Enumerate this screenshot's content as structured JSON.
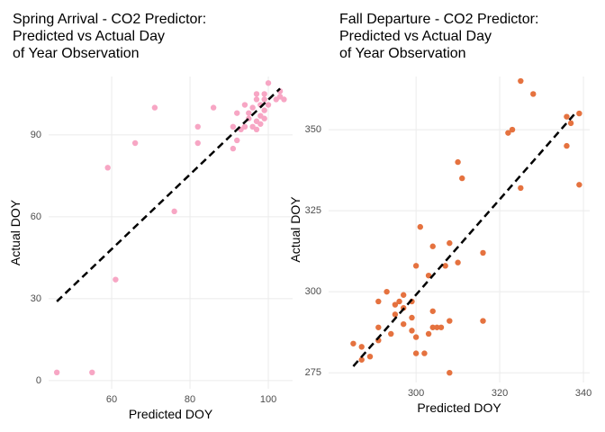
{
  "chart_data": [
    {
      "type": "scatter",
      "title": [
        "Spring Arrival - CO2 Predictor:",
        "Predicted vs Actual Day",
        "of Year Observation"
      ],
      "xlabel": "Predicted DOY",
      "ylabel": "Actual DOY",
      "color": "#f7a6c4",
      "grid": true,
      "xlim": [
        43.9,
        106.2
      ],
      "ylim": [
        -3,
        111.4
      ],
      "xticks": [
        60,
        80,
        100
      ],
      "yticks": [
        0,
        30,
        60,
        90
      ],
      "x": [
        46,
        55,
        59,
        61,
        66,
        71,
        76,
        82,
        82,
        86,
        91,
        91,
        92,
        92,
        93,
        94,
        94,
        95,
        95,
        96,
        96,
        97,
        97,
        97,
        97,
        98,
        98,
        98,
        99,
        99,
        99,
        99,
        100,
        100,
        102,
        103,
        103,
        104
      ],
      "y": [
        3,
        3,
        78,
        37,
        87,
        100,
        62,
        87,
        93,
        100,
        85,
        93,
        88,
        98,
        92,
        93,
        101,
        96,
        98,
        93,
        100,
        92,
        95,
        103,
        105,
        94,
        97,
        101,
        96,
        99,
        103,
        105,
        101,
        109,
        103,
        104,
        106,
        103
      ],
      "fit_line": {
        "x": [
          46,
          103
        ],
        "y": [
          29,
          107
        ]
      }
    },
    {
      "type": "scatter",
      "title": [
        "Fall Departure - CO2 Predictor:",
        "Predicted vs Actual Day",
        "of Year Observation"
      ],
      "xlabel": "Predicted DOY",
      "ylabel": "Actual DOY",
      "color": "#e5723f",
      "grid": true,
      "xlim": [
        279.1,
        341.5
      ],
      "ylim": [
        272,
        366.4
      ],
      "xticks": [
        300,
        320,
        340
      ],
      "yticks": [
        275,
        300,
        325,
        350
      ],
      "x": [
        285,
        287,
        287,
        289,
        291,
        291,
        291,
        293,
        294,
        295,
        295,
        296,
        297,
        297,
        297,
        299,
        299,
        299,
        300,
        300,
        300,
        301,
        302,
        303,
        303,
        304,
        304,
        304,
        305,
        306,
        307,
        308,
        308,
        308,
        310,
        310,
        311,
        316,
        316,
        322,
        323,
        325,
        325,
        328,
        336,
        336,
        337,
        339,
        339
      ],
      "y": [
        284,
        283,
        279,
        280,
        289,
        297,
        285,
        300,
        287,
        293,
        296,
        297,
        299,
        295,
        290,
        297,
        292,
        288,
        286,
        281,
        308,
        320,
        281,
        287,
        305,
        314,
        289,
        294,
        289,
        289,
        308,
        275,
        291,
        315,
        340,
        309,
        335,
        291,
        312,
        349,
        350,
        365,
        332,
        361,
        345,
        354,
        352,
        355,
        333
      ],
      "fit_line": {
        "x": [
          285,
          338
        ],
        "y": [
          277,
          355
        ]
      }
    }
  ]
}
